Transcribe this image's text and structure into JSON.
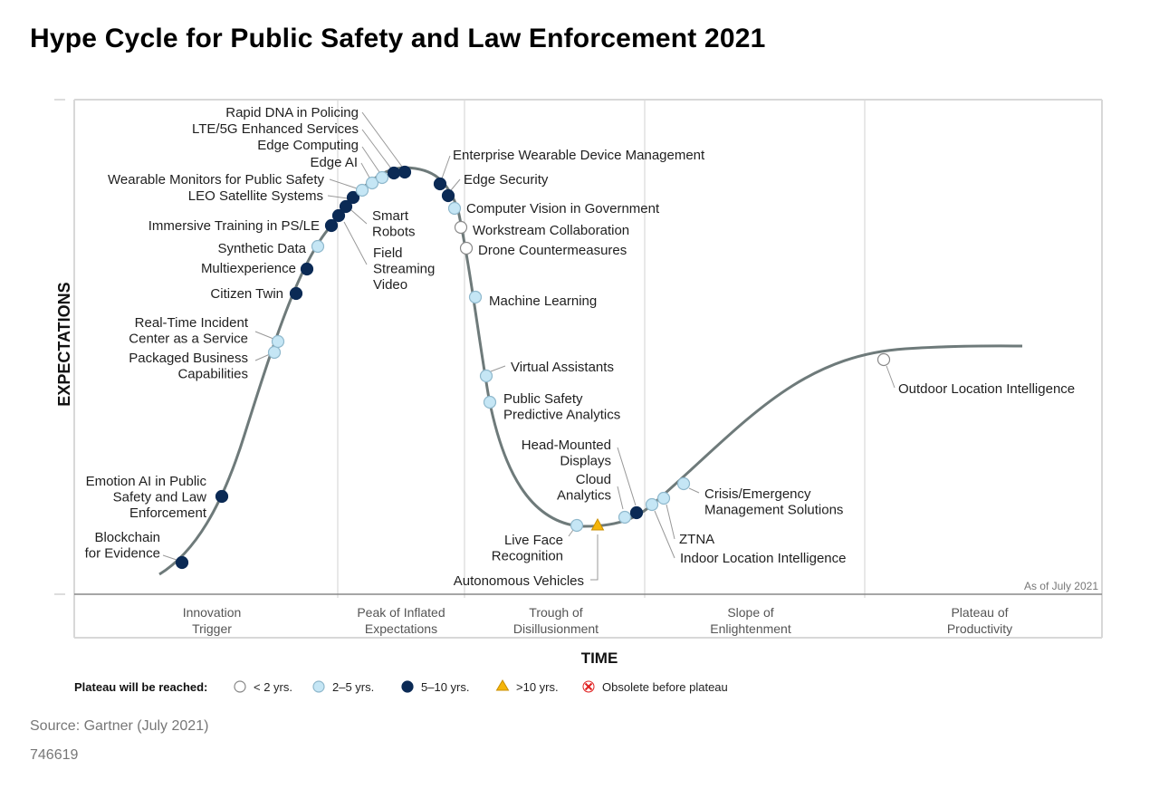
{
  "title": "Hype Cycle for Public Safety and Law Enforcement 2021",
  "source": "Source: Gartner (July 2021)",
  "doc_id": "746619",
  "colors": {
    "under2": "#ffffff",
    "two_five": "#c5e6f5",
    "five_ten": "#0b2a55",
    "over10": "#f5b50a",
    "curve": "#6e7a7a",
    "grid": "#d8d8d8",
    "obsolete": "#e02020"
  },
  "chart_data": {
    "type": "scatter",
    "title": "Hype Cycle for Public Safety and Law Enforcement 2021",
    "xlabel": "TIME",
    "ylabel": "EXPECTATIONS",
    "as_of": "As of July 2021",
    "phases": [
      "Innovation Trigger",
      "Peak of Inflated Expectations",
      "Trough of Disillusionment",
      "Slope of Enlightenment",
      "Plateau of Productivity"
    ],
    "legend_title": "Plateau will be reached:",
    "legend": [
      {
        "key": "under2",
        "label": "< 2 yrs."
      },
      {
        "key": "two_five",
        "label": "2–5 yrs."
      },
      {
        "key": "five_ten",
        "label": "5–10 yrs."
      },
      {
        "key": "over10",
        "label": ">10 yrs."
      },
      {
        "key": "obsolete",
        "label": "Obsolete before plateau"
      }
    ],
    "series": [
      {
        "label": "Blockchain for Evidence",
        "plateau": "five_ten"
      },
      {
        "label": "Emotion AI in Public Safety and Law Enforcement",
        "plateau": "five_ten"
      },
      {
        "label": "Packaged Business Capabilities",
        "plateau": "two_five"
      },
      {
        "label": "Real-Time Incident Center as a Service",
        "plateau": "two_five"
      },
      {
        "label": "Citizen Twin",
        "plateau": "five_ten"
      },
      {
        "label": "Multiexperience",
        "plateau": "five_ten"
      },
      {
        "label": "Synthetic Data",
        "plateau": "two_five"
      },
      {
        "label": "Immersive Training in PS/LE",
        "plateau": "five_ten"
      },
      {
        "label": "Field Streaming Video",
        "plateau": "five_ten"
      },
      {
        "label": "Smart Robots",
        "plateau": "five_ten"
      },
      {
        "label": "LEO Satellite Systems",
        "plateau": "five_ten"
      },
      {
        "label": "Wearable Monitors for Public Safety",
        "plateau": "two_five"
      },
      {
        "label": "Edge AI",
        "plateau": "two_five"
      },
      {
        "label": "Edge Computing",
        "plateau": "two_five"
      },
      {
        "label": "LTE/5G Enhanced Services",
        "plateau": "five_ten"
      },
      {
        "label": "Rapid DNA in Policing",
        "plateau": "five_ten"
      },
      {
        "label": "Enterprise Wearable Device Management",
        "plateau": "five_ten"
      },
      {
        "label": "Edge Security",
        "plateau": "five_ten"
      },
      {
        "label": "Computer Vision in Government",
        "plateau": "two_five"
      },
      {
        "label": "Workstream Collaboration",
        "plateau": "under2"
      },
      {
        "label": "Drone Countermeasures",
        "plateau": "under2"
      },
      {
        "label": "Machine Learning",
        "plateau": "two_five"
      },
      {
        "label": "Virtual Assistants",
        "plateau": "two_five"
      },
      {
        "label": "Public Safety Predictive Analytics",
        "plateau": "two_five"
      },
      {
        "label": "Live Face Recognition",
        "plateau": "two_five"
      },
      {
        "label": "Autonomous Vehicles",
        "plateau": "over10"
      },
      {
        "label": "Cloud Analytics",
        "plateau": "two_five"
      },
      {
        "label": "Head-Mounted Displays",
        "plateau": "five_ten"
      },
      {
        "label": "Indoor Location Intelligence",
        "plateau": "two_five"
      },
      {
        "label": "ZTNA",
        "plateau": "two_five"
      },
      {
        "label": "Crisis/Emergency Management Solutions",
        "plateau": "two_five"
      },
      {
        "label": "Outdoor Location Intelligence",
        "plateau": "under2"
      }
    ]
  }
}
